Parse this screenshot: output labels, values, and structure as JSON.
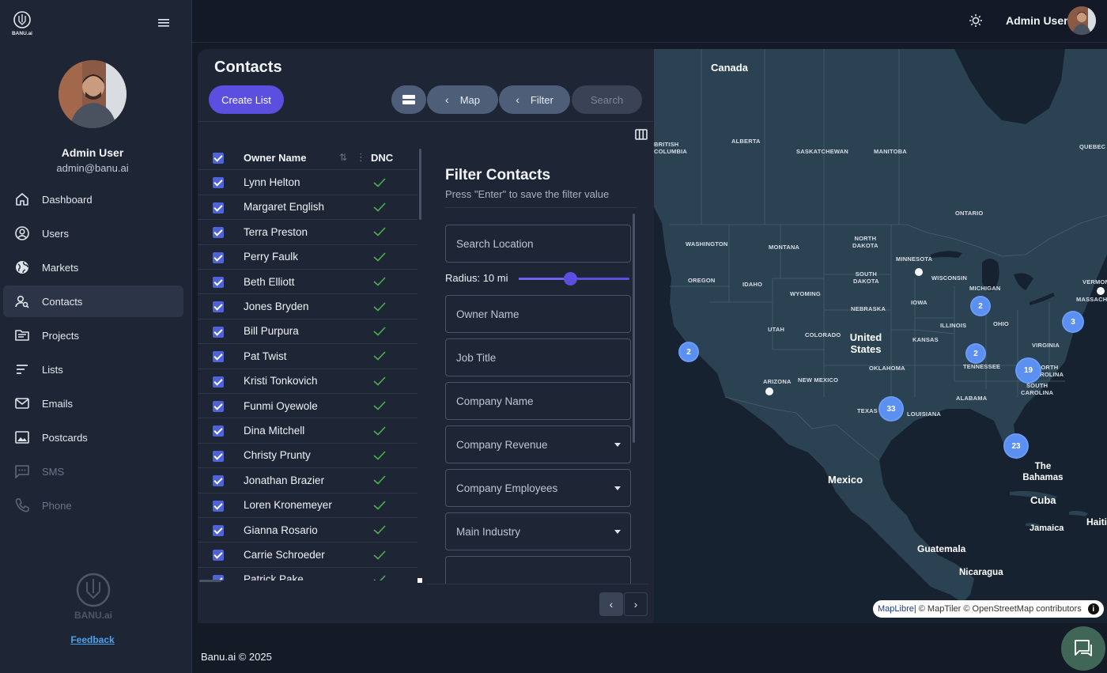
{
  "sidebar": {
    "logo_text": "BANU.ai",
    "user_name": "Admin User",
    "user_email": "admin@banu.ai",
    "items": [
      {
        "label": "Dashboard",
        "icon": "home-icon"
      },
      {
        "label": "Users",
        "icon": "user-icon"
      },
      {
        "label": "Markets",
        "icon": "globe-icon"
      },
      {
        "label": "Contacts",
        "icon": "contacts-icon",
        "active": true
      },
      {
        "label": "Projects",
        "icon": "folder-icon"
      },
      {
        "label": "Lists",
        "icon": "list-icon"
      },
      {
        "label": "Emails",
        "icon": "mail-icon"
      },
      {
        "label": "Postcards",
        "icon": "image-icon"
      },
      {
        "label": "SMS",
        "icon": "sms-icon",
        "disabled": true
      },
      {
        "label": "Phone",
        "icon": "phone-icon",
        "disabled": true
      }
    ],
    "brand_bottom": "BANU.ai",
    "feedback": "Feedback"
  },
  "topbar": {
    "user_name": "Admin User"
  },
  "page": {
    "title": "Contacts",
    "create_list": "Create List",
    "map_btn": "Map",
    "filter_btn": "Filter",
    "search_btn": "Search"
  },
  "table": {
    "headers": {
      "owner": "Owner Name",
      "dnc": "DNC"
    },
    "rows": [
      "Lynn Helton",
      "Margaret English",
      "Terra Preston",
      "Perry Faulk",
      "Beth Elliott",
      "Jones Bryden",
      "Bill Purpura",
      "Pat Twist",
      "Kristi Tonkovich",
      "Funmi Oyewole",
      "Dina Mitchell",
      "Christy Prunty",
      "Jonathan Brazier",
      "Loren Kronemeyer",
      "Gianna Rosario",
      "Carrie Schroeder",
      "Patrick Pake"
    ]
  },
  "filter": {
    "title": "Filter Contacts",
    "subtitle": "Press \"Enter\" to save the filter value",
    "location_placeholder": "Search Location",
    "radius_label": "Radius: 10 mi",
    "radius_fraction": 0.47,
    "owner_placeholder": "Owner Name",
    "job_placeholder": "Job Title",
    "company_placeholder": "Company Name",
    "revenue_label": "Company Revenue",
    "employees_label": "Company Employees",
    "industry_label": "Main Industry"
  },
  "map": {
    "countries": {
      "canada": "Canada",
      "us": "United States",
      "mexico": "Mexico",
      "bahamas": "The Bahamas",
      "cuba": "Cuba",
      "haiti": "Haiti",
      "jamaica": "Jamaica",
      "guatemala": "Guatemala",
      "nicaragua": "Nicaragua"
    },
    "regions": {
      "bc": "BRITISH\nCOLUMBIA",
      "alberta": "ALBERTA",
      "sask": "SASKATCHEWAN",
      "manitoba": "MANITOBA",
      "ontario": "ONTARIO",
      "quebec": "QUEBEC",
      "washington": "WASHINGTON",
      "oregon": "OREGON",
      "idaho": "IDAHO",
      "montana": "MONTANA",
      "wyoming": "WYOMING",
      "utah": "UTAH",
      "colorado": "COLORADO",
      "arizona": "ARIZONA",
      "newmexico": "NEW MEXICO",
      "northdakota": "NORTH\nDAKOTA",
      "southdakota": "SOUTH\nDAKOTA",
      "nebraska": "NEBRASKA",
      "kansas": "KANSAS",
      "oklahoma": "OKLAHOMA",
      "texas": "TEXAS",
      "minnesota": "MINNESOTA",
      "iowa": "IOWA",
      "wisconsin": "WISCONSIN",
      "michigan": "MICHIGAN",
      "illinois": "ILLINOIS",
      "ohio": "OHIO",
      "tennessee": "TENNESSEE",
      "virginia": "VIRGINIA",
      "northcarolina": "NORTH\nCAROLINA",
      "southcarolina": "SOUTH\nCAROLINA",
      "louisiana": "LOUISIANA",
      "alabama": "ALABAMA",
      "vermont": "VERMONT",
      "massachusetts": "MASSACHUSE"
    },
    "clusters": [
      "2",
      "2",
      "3",
      "2",
      "19",
      "33",
      "23"
    ],
    "attribution_maplibre": "MapLibre",
    "attribution_rest": " | © MapTiler © OpenStreetMap contributors"
  },
  "footer": "Banu.ai © 2025"
}
